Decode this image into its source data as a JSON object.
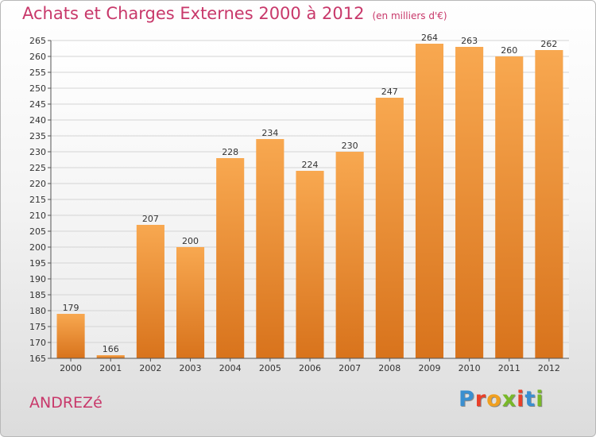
{
  "header": {
    "title": "Achats et Charges Externes 2000 à 2012",
    "subtitle": "(en milliers d'€)"
  },
  "footer": {
    "place": "ANDREZé",
    "brand": "Proxiti"
  },
  "colors": {
    "title": "#c8386a",
    "bar_top": "#f8a850",
    "bar_bottom": "#d8731c",
    "brand_letters": [
      "#3a8fd0",
      "#e8402a",
      "#f0a020",
      "#78b828",
      "#e8402a",
      "#3a8fd0",
      "#78b828"
    ]
  },
  "chart_data": {
    "type": "bar",
    "title": "Achats et Charges Externes 2000 à 2012",
    "subtitle": "(en milliers d'€)",
    "categories": [
      "2000",
      "2001",
      "2002",
      "2003",
      "2004",
      "2005",
      "2006",
      "2007",
      "2008",
      "2009",
      "2010",
      "2011",
      "2012"
    ],
    "values": [
      179,
      166,
      207,
      200,
      228,
      234,
      224,
      230,
      247,
      264,
      263,
      260,
      262
    ],
    "ylim": [
      165,
      265
    ],
    "yticks": [
      165,
      170,
      175,
      180,
      185,
      190,
      195,
      200,
      205,
      210,
      215,
      220,
      225,
      230,
      235,
      240,
      245,
      250,
      255,
      260,
      265
    ],
    "grid": true,
    "data_labels": true,
    "legend": "none"
  }
}
